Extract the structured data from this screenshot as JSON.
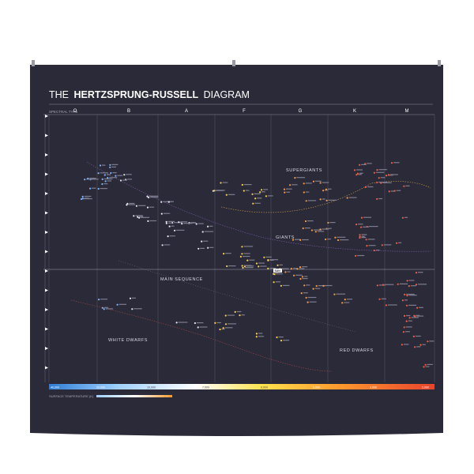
{
  "title": {
    "prefix": "THE",
    "bold": "HERTZSPRUNG-RUSSELL",
    "suffix": "DIAGRAM"
  },
  "spectral_type_label": "SPECTRAL TYPE",
  "spectral_classes": [
    "O",
    "B",
    "A",
    "F",
    "G",
    "K",
    "M"
  ],
  "regions": {
    "supergiants": "SUPERGIANTS",
    "giants": "GIANTS",
    "main_sequence": "MAIN SEQUENCE",
    "white_dwarfs": "WHITE DWARFS",
    "red_dwarfs": "RED DWARFS"
  },
  "sun_label": "SUN",
  "temperature_scale": {
    "ticks": [
      "40,000",
      "20,000",
      "10,000",
      "7,500",
      "6,000",
      "5,000",
      "3,000",
      "2,000"
    ]
  },
  "surface_temperature_label": "SURFACE TEMPERATURE (K)",
  "colors": {
    "background": "#2b2a38",
    "grid": "#565668",
    "star_blue": "#7fb3ff",
    "star_white": "#e6e8f0",
    "star_yellow": "#ffd24d",
    "star_orange": "#ff9a3c",
    "star_red": "#ff5a3c",
    "gradient": [
      "#2f7dd4",
      "#9fd0ff",
      "#ffffff",
      "#ffe34d",
      "#ff9a2e",
      "#e8432c"
    ]
  }
}
